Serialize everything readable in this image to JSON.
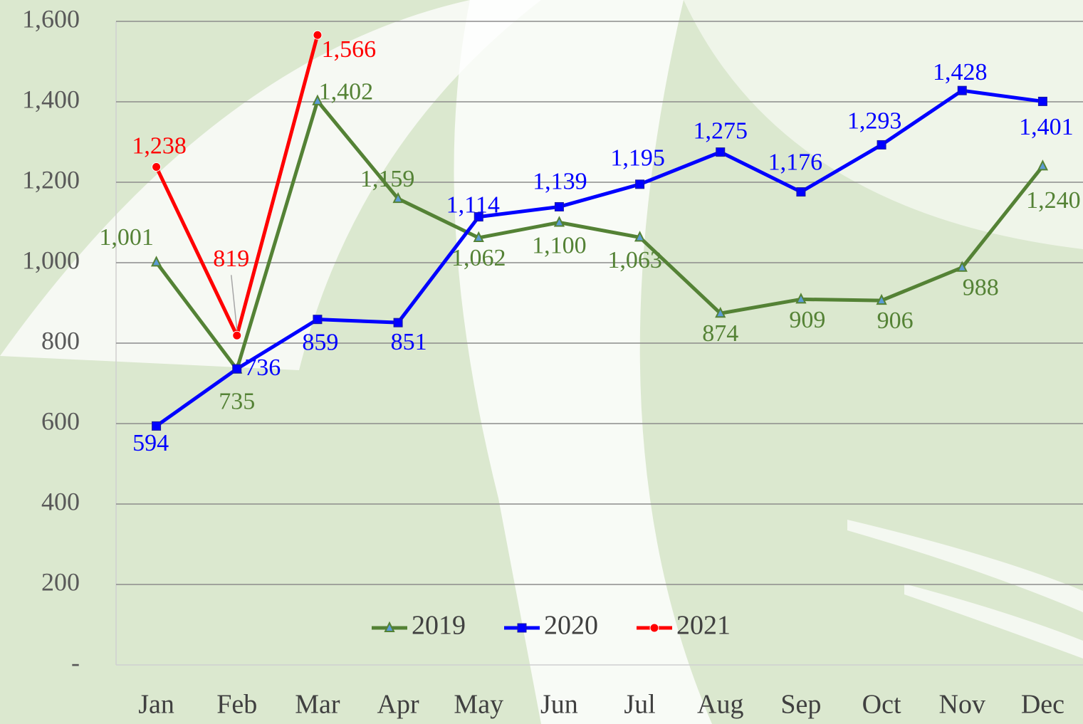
{
  "chart_data": {
    "type": "line",
    "categories": [
      "Jan",
      "Feb",
      "Mar",
      "Apr",
      "May",
      "Jun",
      "Jul",
      "Aug",
      "Sep",
      "Oct",
      "Nov",
      "Dec"
    ],
    "series": [
      {
        "name": "2019",
        "color": "#548235",
        "marker": "triangle",
        "values": [
          1001,
          735,
          1402,
          1159,
          1062,
          1100,
          1063,
          874,
          909,
          906,
          988,
          1240
        ],
        "value_labels": [
          "1,001",
          "735",
          "1,402",
          "1,159",
          "1,062",
          "1,100",
          "1,063",
          "874",
          "909",
          "906",
          "988",
          "1,240"
        ]
      },
      {
        "name": "2020",
        "color": "#0000ff",
        "marker": "square",
        "values": [
          594,
          736,
          859,
          851,
          1114,
          1139,
          1195,
          1275,
          1176,
          1293,
          1428,
          1401
        ],
        "value_labels": [
          "594",
          "736",
          "859",
          "851",
          "1,114",
          "1,139",
          "1,195",
          "1,275",
          "1,176",
          "1,293",
          "1,428",
          "1,401"
        ]
      },
      {
        "name": "2021",
        "color": "#ff0000",
        "marker": "circle",
        "values": [
          1238,
          819,
          1566,
          null,
          null,
          null,
          null,
          null,
          null,
          null,
          null,
          null
        ],
        "value_labels": [
          "1,238",
          "819",
          "1,566",
          null,
          null,
          null,
          null,
          null,
          null,
          null,
          null,
          null
        ]
      }
    ],
    "ylim": [
      0,
      1600
    ],
    "yticks": [
      {
        "value": 0,
        "label": "-"
      },
      200,
      400,
      600,
      800,
      {
        "value": 1000,
        "label": "1,000"
      },
      {
        "value": 1200,
        "label": "1,200"
      },
      {
        "value": 1400,
        "label": "1,400"
      },
      {
        "value": 1600,
        "label": "1,600"
      }
    ],
    "grid": true,
    "legend": "bottom"
  }
}
